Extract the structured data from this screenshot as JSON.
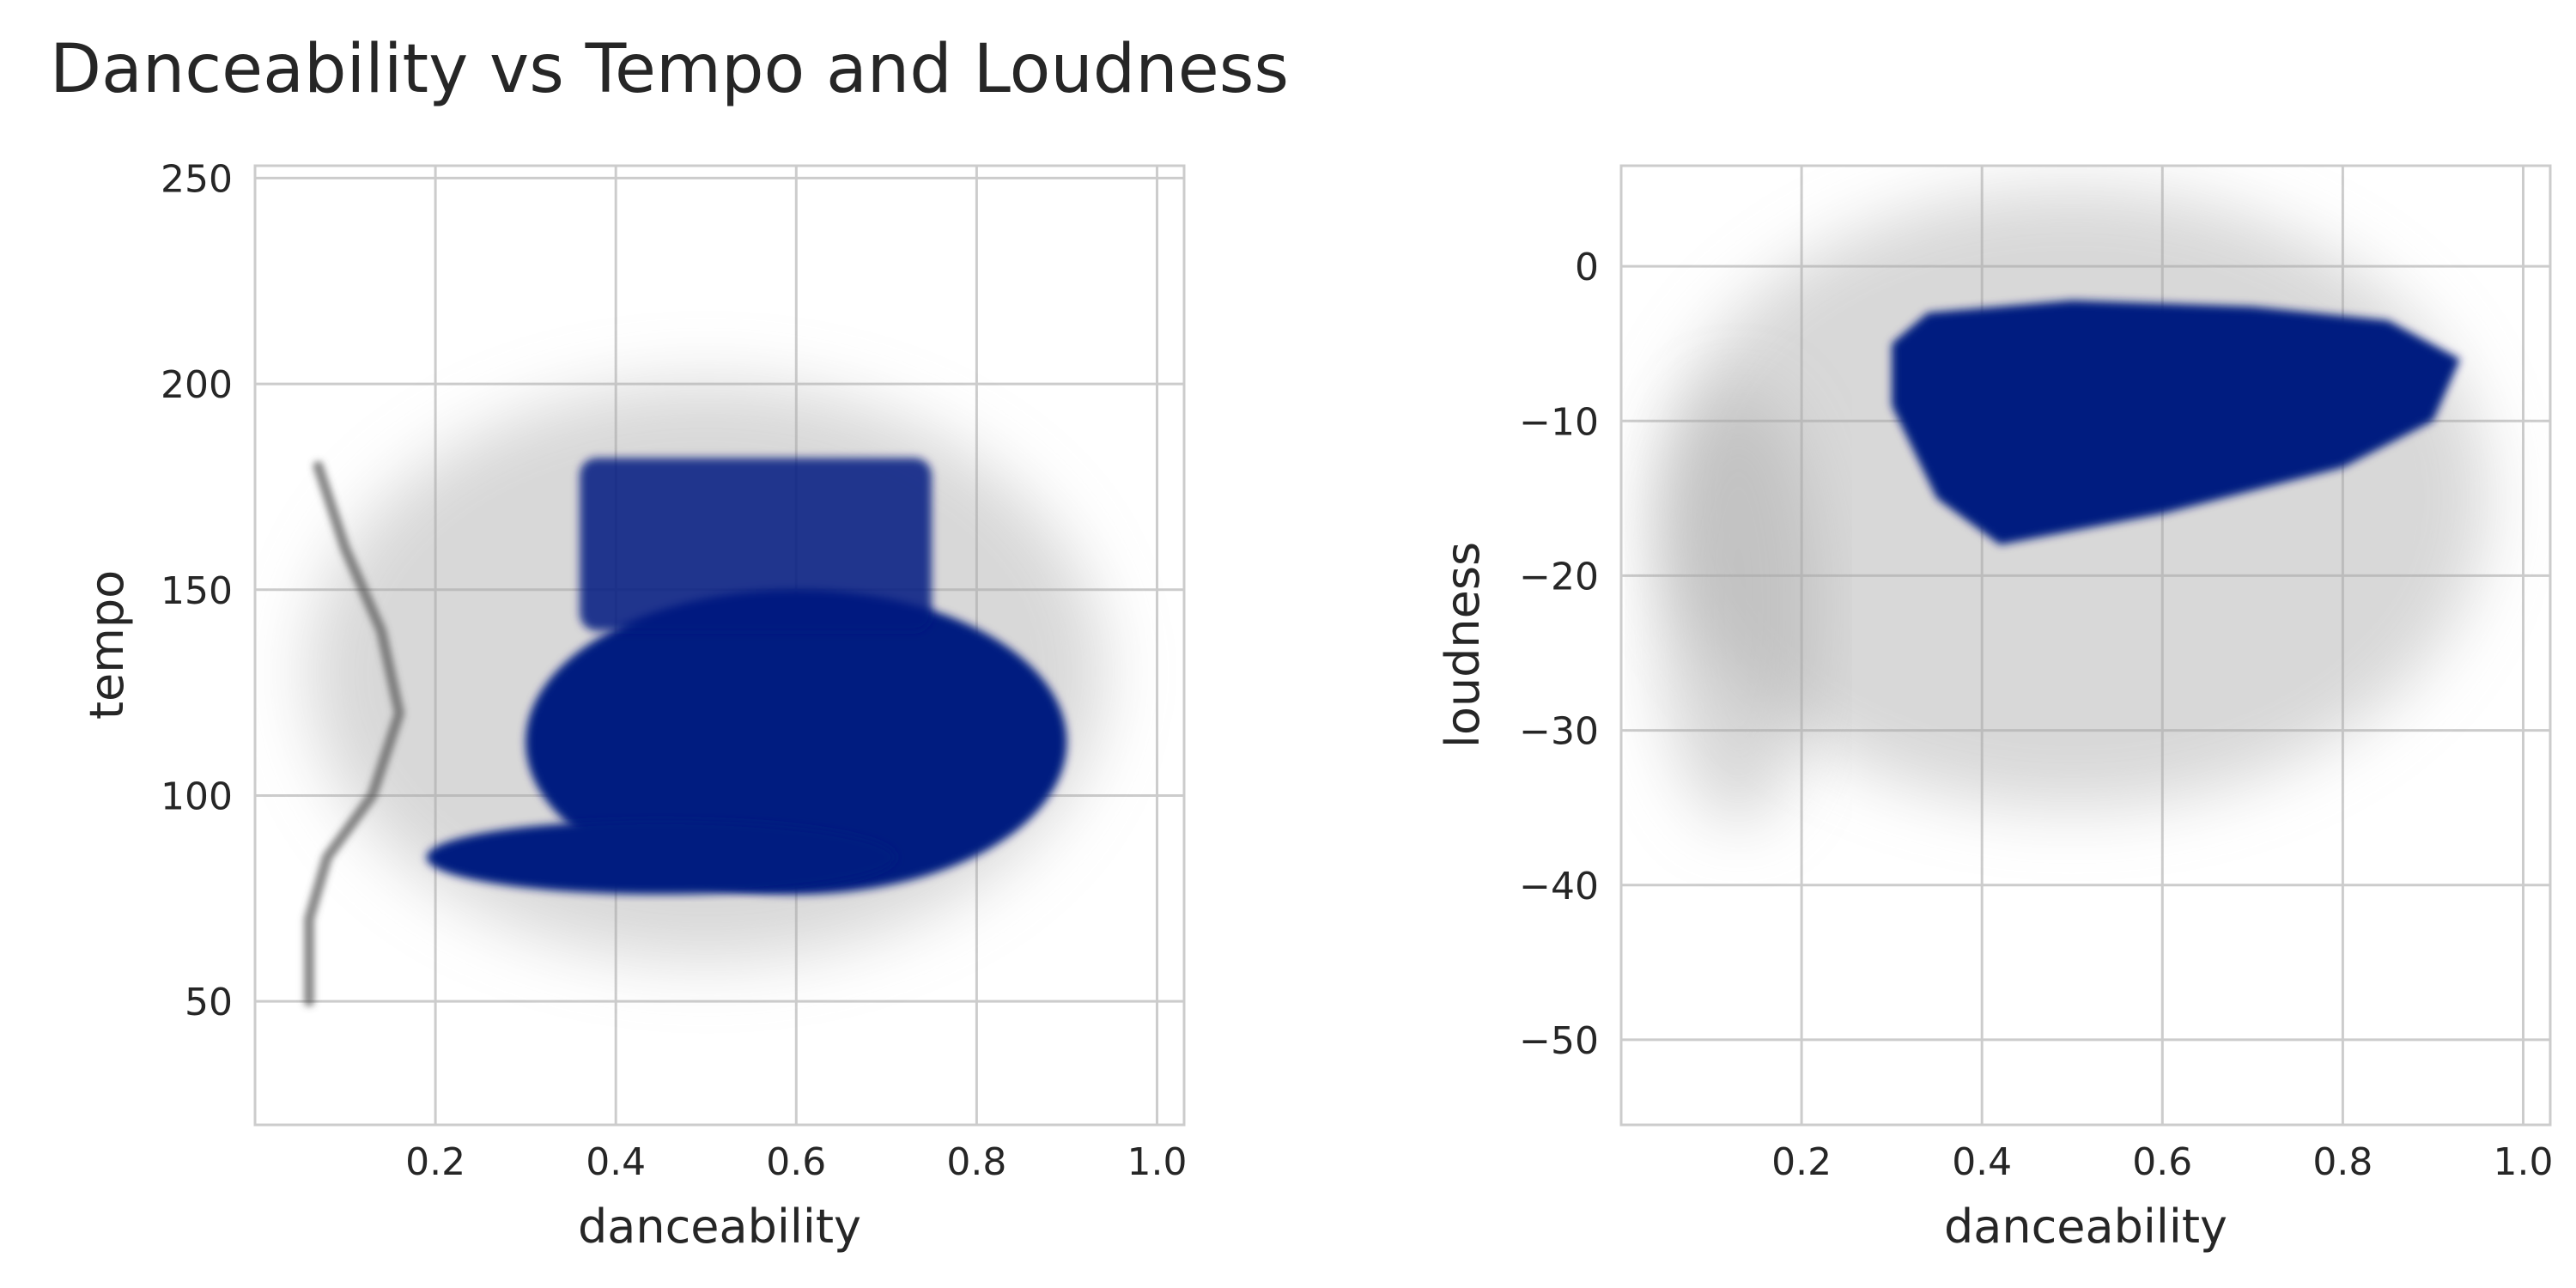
{
  "figure": {
    "title": "Danceability vs Tempo and Loudness"
  },
  "colors": {
    "point": "#001a80",
    "cloud": "#a8a8a8",
    "grid": "#cccccc",
    "axes_border": "#cccccc",
    "text": "#262626",
    "background": "#ffffff"
  },
  "chart_data": [
    {
      "type": "scatter",
      "title": "",
      "xlabel": "danceability",
      "ylabel": "tempo",
      "xlim": [
        0.0,
        1.03
      ],
      "ylim": [
        20,
        253
      ],
      "xticks": [
        0.2,
        0.4,
        0.6,
        0.8,
        1.0
      ],
      "xtick_labels": [
        "0.2",
        "0.4",
        "0.6",
        "0.8",
        "1.0"
      ],
      "yticks": [
        50,
        100,
        150,
        200,
        250
      ],
      "ytick_labels": [
        "50",
        "100",
        "150",
        "200",
        "250"
      ],
      "grid": true,
      "legend": "none",
      "point_alpha": "very low (heavy overplotting)",
      "density_regions": [
        {
          "level": "dense",
          "shape": "ellipse",
          "center": [
            0.6,
            113
          ],
          "radius_x": 0.3,
          "radius_y": 37
        },
        {
          "level": "dense",
          "shape": "ellipse",
          "center": [
            0.45,
            85
          ],
          "radius_x": 0.26,
          "radius_y": 9
        },
        {
          "level": "dense",
          "shape": "band",
          "x_range": [
            0.36,
            0.75
          ],
          "y_range": [
            140,
            182
          ]
        },
        {
          "level": "sparse",
          "shape": "ellipse",
          "center": [
            0.5,
            130
          ],
          "radius_x": 0.44,
          "radius_y": 70
        }
      ],
      "curve_traces": [
        {
          "level": "medium",
          "points": [
            [
              0.06,
              50
            ],
            [
              0.06,
              70
            ],
            [
              0.08,
              85
            ],
            [
              0.13,
              100
            ],
            [
              0.16,
              120
            ],
            [
              0.14,
              140
            ],
            [
              0.1,
              160
            ],
            [
              0.07,
              180
            ]
          ]
        }
      ]
    },
    {
      "type": "scatter",
      "title": "",
      "xlabel": "danceability",
      "ylabel": "loudness",
      "xlim": [
        0.0,
        1.03
      ],
      "ylim": [
        -55.5,
        6.5
      ],
      "xticks": [
        0.2,
        0.4,
        0.6,
        0.8,
        1.0
      ],
      "xtick_labels": [
        "0.2",
        "0.4",
        "0.6",
        "0.8",
        "1.0"
      ],
      "yticks": [
        0,
        -10,
        -20,
        -30,
        -40,
        -50
      ],
      "ytick_labels": [
        "0",
        "−10",
        "−20",
        "−30",
        "−40",
        "−50"
      ],
      "grid": true,
      "legend": "none",
      "point_alpha": "very low (heavy overplotting)",
      "density_regions": [
        {
          "level": "dense",
          "shape": "polygon",
          "points": [
            [
              0.3,
              -5
            ],
            [
              0.34,
              -3
            ],
            [
              0.5,
              -2.2
            ],
            [
              0.7,
              -2.6
            ],
            [
              0.85,
              -3.5
            ],
            [
              0.93,
              -6
            ],
            [
              0.9,
              -10
            ],
            [
              0.8,
              -13
            ],
            [
              0.6,
              -16
            ],
            [
              0.42,
              -18
            ],
            [
              0.35,
              -15
            ],
            [
              0.3,
              -9
            ]
          ]
        },
        {
          "level": "sparse",
          "shape": "ellipse",
          "center": [
            0.5,
            -15
          ],
          "radius_x": 0.46,
          "radius_y": 20
        },
        {
          "level": "sparse",
          "shape": "ellipse",
          "center": [
            0.13,
            -22
          ],
          "radius_x": 0.09,
          "radius_y": 14
        }
      ]
    }
  ]
}
